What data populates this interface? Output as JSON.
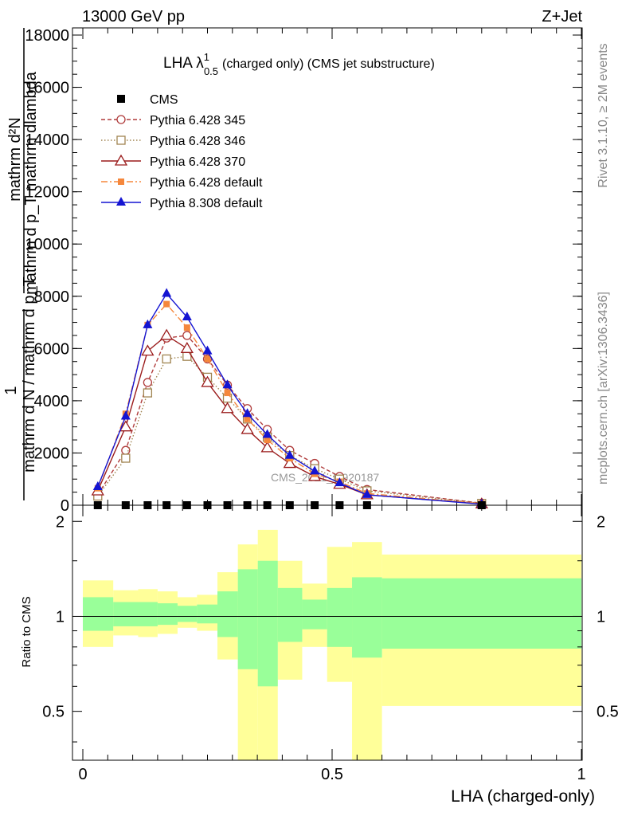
{
  "header": {
    "left": "13000 GeV pp",
    "right": "Z+Jet"
  },
  "side_labels": {
    "rivet": "Rivet 3.1.10, ≥ 2M events",
    "mcplots": "mcplots.cern.ch [arXiv:1306.3436]"
  },
  "watermark": "CMS_2021_I1920187",
  "chart_data": [
    {
      "type": "line",
      "title_main": "LHA λ",
      "title_sup": "1",
      "title_sub": "0.5",
      "title_rest": "(charged only) (CMS jet substructure)",
      "ylabel_lines": [
        "mathrm d²N",
        "mathrm d p_T mathrm dlambda",
        "1",
        "mathrm d N / mathrm d p_T"
      ],
      "xlim": [
        0,
        1
      ],
      "ylim": [
        0,
        18000
      ],
      "yticks": [
        0,
        2000,
        4000,
        6000,
        8000,
        10000,
        12000,
        14000,
        16000,
        18000
      ],
      "ytick_labels": [
        "0",
        "2000",
        "4000",
        "6000",
        "8000",
        "10000",
        "12000",
        "14000",
        "16000",
        "18000"
      ],
      "x": [
        0.03,
        0.086,
        0.13,
        0.168,
        0.209,
        0.25,
        0.29,
        0.33,
        0.37,
        0.415,
        0.465,
        0.515,
        0.57,
        0.8
      ],
      "series": [
        {
          "name": "CMS",
          "color": "#000000",
          "marker": "square",
          "dash": "none",
          "values": [
            0.3,
            0.3,
            0.3,
            0.3,
            0.3,
            0.3,
            0.3,
            0.3,
            0.3,
            0.3,
            0.3,
            0.3,
            0.3,
            0.05
          ]
        },
        {
          "name": "Pythia 6.428 345",
          "color": "#b03c3c",
          "marker": "circle-open",
          "dash": "5,3",
          "values": [
            400,
            2100,
            4700,
            6400,
            6500,
            5600,
            4600,
            3700,
            2900,
            2100,
            1600,
            1100,
            600,
            80
          ]
        },
        {
          "name": "Pythia 6.428 346",
          "color": "#a08450",
          "marker": "square-open",
          "dash": "1.5,2.5",
          "values": [
            350,
            1800,
            4300,
            5600,
            5700,
            4900,
            4100,
            3300,
            2600,
            1900,
            1400,
            1000,
            550,
            70
          ]
        },
        {
          "name": "Pythia 6.428 370",
          "color": "#9b1c1c",
          "marker": "triangle-open",
          "dash": "none",
          "values": [
            550,
            3000,
            5900,
            6500,
            6000,
            4700,
            3700,
            2900,
            2200,
            1600,
            1100,
            800,
            400,
            50
          ]
        },
        {
          "name": "Pythia 6.428 default",
          "color": "#f5873c",
          "marker": "square-small",
          "dash": "8,3,2,3",
          "values": [
            650,
            3500,
            6900,
            7700,
            6800,
            5600,
            4300,
            3300,
            2500,
            1800,
            1200,
            900,
            450,
            60
          ]
        },
        {
          "name": "Pythia 8.308 default",
          "color": "#1414d2",
          "marker": "triangle",
          "dash": "none",
          "values": [
            700,
            3400,
            6900,
            8100,
            7200,
            5900,
            4600,
            3500,
            2700,
            1900,
            1300,
            850,
            400,
            40
          ]
        }
      ]
    },
    {
      "type": "area",
      "ylabel": "Ratio to CMS",
      "xlabel": "LHA (charged-only)",
      "xlim": [
        0,
        1
      ],
      "ylim": [
        0.35,
        2.25
      ],
      "yticks": [
        0.5,
        1,
        2
      ],
      "ytick_labels": [
        "0.5",
        "1",
        "2"
      ],
      "xticks": [
        0,
        0.5,
        1
      ],
      "xtick_labels": [
        "0",
        "0.5",
        "1"
      ],
      "bins": [
        {
          "x0": 0.0,
          "x1": 0.061,
          "green": [
            0.9,
            1.15
          ],
          "yellow": [
            0.8,
            1.3
          ]
        },
        {
          "x0": 0.061,
          "x1": 0.111,
          "green": [
            0.93,
            1.11
          ],
          "yellow": [
            0.87,
            1.21
          ]
        },
        {
          "x0": 0.111,
          "x1": 0.15,
          "green": [
            0.93,
            1.11
          ],
          "yellow": [
            0.86,
            1.22
          ]
        },
        {
          "x0": 0.15,
          "x1": 0.19,
          "green": [
            0.94,
            1.1
          ],
          "yellow": [
            0.88,
            1.2
          ]
        },
        {
          "x0": 0.19,
          "x1": 0.229,
          "green": [
            0.96,
            1.08
          ],
          "yellow": [
            0.92,
            1.15
          ]
        },
        {
          "x0": 0.229,
          "x1": 0.27,
          "green": [
            0.95,
            1.09
          ],
          "yellow": [
            0.9,
            1.17
          ]
        },
        {
          "x0": 0.27,
          "x1": 0.311,
          "green": [
            0.86,
            1.2
          ],
          "yellow": [
            0.73,
            1.38
          ]
        },
        {
          "x0": 0.311,
          "x1": 0.351,
          "green": [
            0.68,
            1.41
          ],
          "yellow": [
            0.35,
            1.69
          ]
        },
        {
          "x0": 0.351,
          "x1": 0.391,
          "green": [
            0.6,
            1.5
          ],
          "yellow": [
            0.35,
            1.88
          ]
        },
        {
          "x0": 0.391,
          "x1": 0.44,
          "green": [
            0.83,
            1.23
          ],
          "yellow": [
            0.63,
            1.5
          ]
        },
        {
          "x0": 0.44,
          "x1": 0.49,
          "green": [
            0.91,
            1.13
          ],
          "yellow": [
            0.8,
            1.27
          ]
        },
        {
          "x0": 0.49,
          "x1": 0.54,
          "green": [
            0.8,
            1.23
          ],
          "yellow": [
            0.62,
            1.66
          ]
        },
        {
          "x0": 0.54,
          "x1": 0.6,
          "green": [
            0.74,
            1.33
          ],
          "yellow": [
            0.35,
            1.72
          ]
        },
        {
          "x0": 0.6,
          "x1": 1.0,
          "green": [
            0.79,
            1.32
          ],
          "yellow": [
            0.52,
            1.57
          ]
        }
      ],
      "reference": 1
    }
  ]
}
